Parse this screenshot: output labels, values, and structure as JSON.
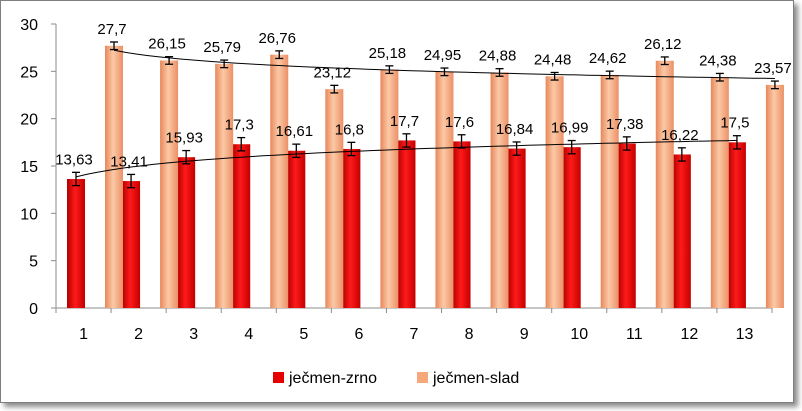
{
  "chart_data": {
    "type": "bar",
    "title": "",
    "xlabel": "",
    "ylabel": "",
    "ylim": [
      0,
      30
    ],
    "ytick_step": 5,
    "grid": false,
    "legend_position": "bottom",
    "categories": [
      "1",
      "2",
      "3",
      "4",
      "5",
      "6",
      "7",
      "8",
      "9",
      "10",
      "11",
      "12",
      "13"
    ],
    "y_ticks": [
      "0",
      "5",
      "10",
      "15",
      "20",
      "25",
      "30"
    ],
    "series": [
      {
        "name": "ječmen-zrno",
        "color": "#e60000",
        "values": [
          13.63,
          13.41,
          15.93,
          17.3,
          16.61,
          16.8,
          17.7,
          17.6,
          16.84,
          16.99,
          17.38,
          16.22,
          17.5
        ],
        "labels": [
          "13,63",
          "13,41",
          "15,93",
          "17,3",
          "16,61",
          "16,8",
          "17,7",
          "17,6",
          "16,84",
          "16,99",
          "17,38",
          "16,22",
          "17,5"
        ],
        "error": 0.7,
        "trendline": "logarithmic"
      },
      {
        "name": "ječmen-slad",
        "color": "#f5a97a",
        "values": [
          27.7,
          26.15,
          25.79,
          26.76,
          23.12,
          25.18,
          24.95,
          24.88,
          24.48,
          24.62,
          26.12,
          24.38,
          23.57
        ],
        "labels": [
          "27,7",
          "26,15",
          "25,79",
          "26,76",
          "23,12",
          "25,18",
          "24,95",
          "24,88",
          "24,48",
          "24,62",
          "26,12",
          "24,38",
          "23,57"
        ],
        "error": 0.4,
        "trendline": "logarithmic"
      }
    ]
  }
}
